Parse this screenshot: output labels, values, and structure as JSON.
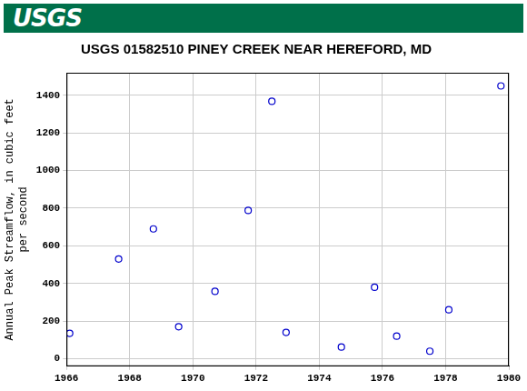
{
  "header": {
    "logo": "USGS"
  },
  "chart_data": {
    "type": "scatter",
    "title": "USGS 01582510 PINEY CREEK NEAR HEREFORD, MD",
    "ylabel": [
      "Annual Peak Streamflow, in cubic feet",
      "per second"
    ],
    "x": [
      1966.1,
      1967.65,
      1968.75,
      1969.55,
      1970.7,
      1971.75,
      1972.5,
      1972.95,
      1974.7,
      1975.75,
      1976.45,
      1977.5,
      1978.1,
      1979.75
    ],
    "values": [
      135,
      530,
      690,
      170,
      358,
      788,
      1368,
      140,
      62,
      380,
      120,
      40,
      260,
      1450
    ],
    "color": "#0000cc",
    "marker": "circle",
    "xlim": [
      1966,
      1980
    ],
    "xticks": [
      1966,
      1968,
      1970,
      1972,
      1974,
      1976,
      1978,
      1980
    ],
    "ylim": [
      -40,
      1520
    ],
    "yticks": [
      0,
      200,
      400,
      600,
      800,
      1000,
      1200,
      1400
    ],
    "grid": true
  }
}
